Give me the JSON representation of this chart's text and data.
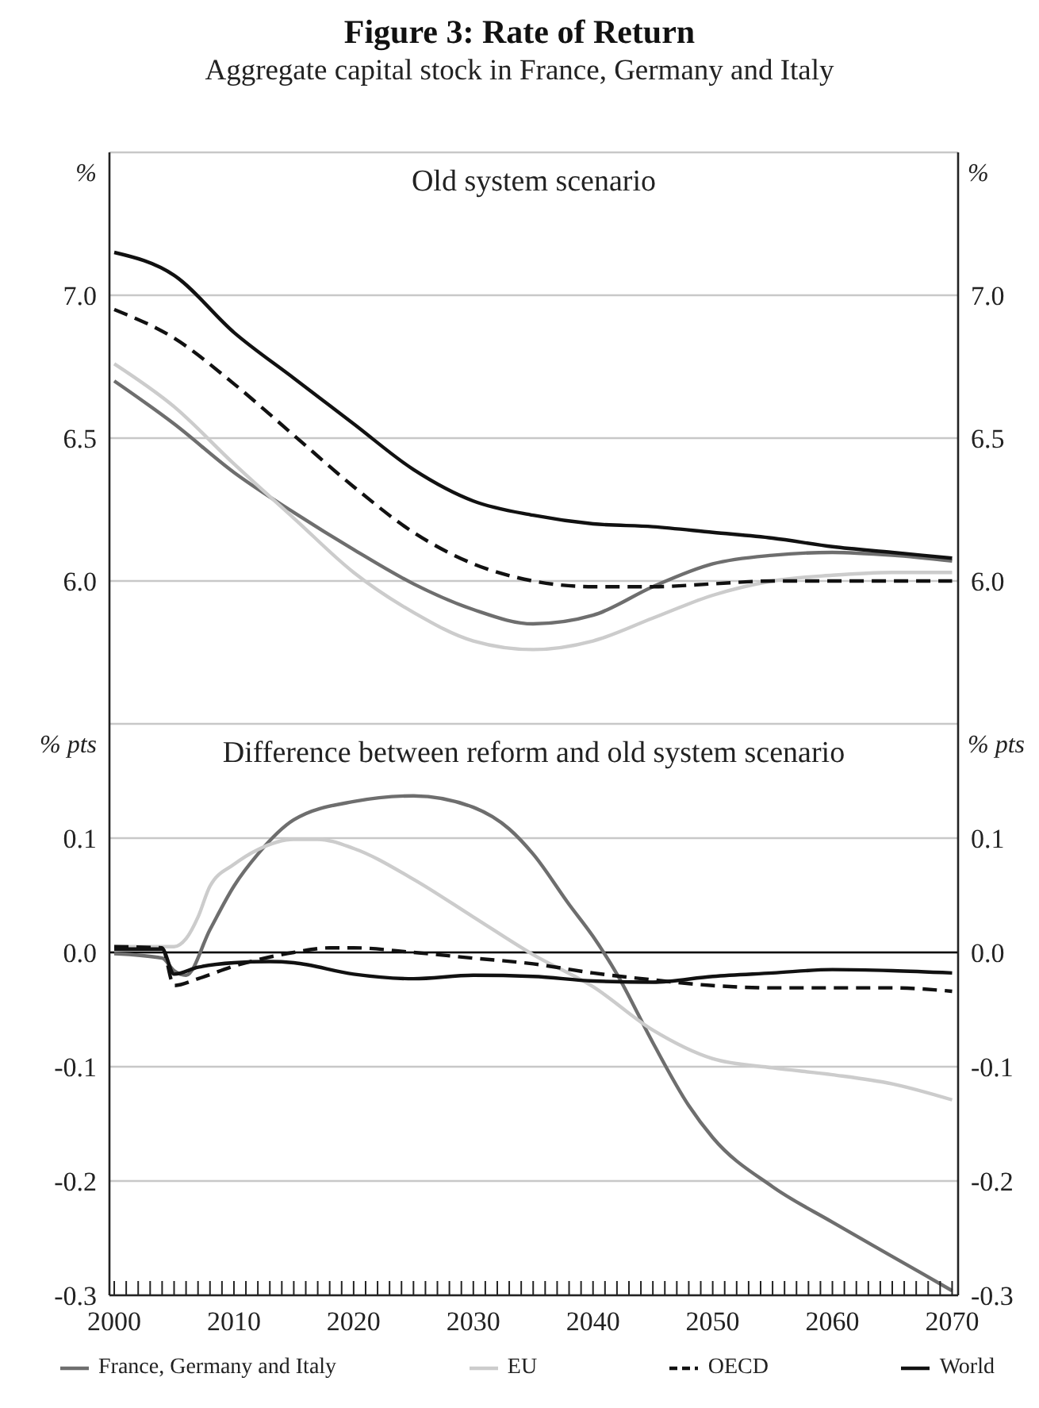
{
  "chart_data": [
    {
      "type": "line",
      "title": "Figure 3: Rate of Return",
      "subtitle": "Aggregate capital stock in France, Germany and Italy",
      "ylabel": "%",
      "y2label": "%",
      "annotations": [
        "Old system scenario"
      ],
      "xlim": [
        1999.6,
        2070.5
      ],
      "ylim": [
        5.5,
        7.5
      ],
      "yticks": [
        {
          "value": 6,
          "label": "6.0"
        },
        6.5,
        {
          "value": 7,
          "label": "7.0"
        }
      ],
      "y2lim": [
        5.5,
        7.5
      ],
      "y2ticks": [
        {
          "value": 6,
          "label": "6.0"
        },
        6.5,
        {
          "value": 7,
          "label": "7.0"
        }
      ],
      "tick_labels": "y",
      "grid": "y",
      "legend": false,
      "marker": "none",
      "series": [
        {
          "color": "#6e6e6e",
          "line_style": "solid",
          "x": [
            2000,
            2005,
            2010,
            2015,
            2020,
            2025,
            2030,
            2035,
            2040,
            2045,
            2050,
            2055,
            2060,
            2065,
            2070
          ],
          "values": [
            6.7,
            6.55,
            6.38,
            6.24,
            6.11,
            5.99,
            5.9,
            5.85,
            5.88,
            5.98,
            6.06,
            6.09,
            6.1,
            6.09,
            6.07
          ]
        },
        {
          "color": "#cccccc",
          "line_style": "solid",
          "x": [
            2000,
            2005,
            2010,
            2015,
            2020,
            2025,
            2030,
            2035,
            2040,
            2045,
            2050,
            2055,
            2060,
            2065,
            2070
          ],
          "values": [
            6.76,
            6.61,
            6.41,
            6.22,
            6.03,
            5.89,
            5.79,
            5.76,
            5.79,
            5.87,
            5.95,
            6.0,
            6.02,
            6.03,
            6.03
          ]
        },
        {
          "color": "#111111",
          "line_style": "dashed",
          "x": [
            2000,
            2005,
            2010,
            2015,
            2020,
            2025,
            2030,
            2035,
            2040,
            2045,
            2050,
            2055,
            2060,
            2065,
            2070
          ],
          "values": [
            6.95,
            6.85,
            6.69,
            6.51,
            6.33,
            6.17,
            6.06,
            6.0,
            5.98,
            5.98,
            5.99,
            6.0,
            6.0,
            6.0,
            6.0
          ]
        },
        {
          "color": "#111111",
          "line_style": "solid",
          "x": [
            2000,
            2005,
            2010,
            2015,
            2020,
            2025,
            2030,
            2035,
            2040,
            2045,
            2050,
            2055,
            2060,
            2065,
            2070
          ],
          "values": [
            7.15,
            7.07,
            6.87,
            6.71,
            6.55,
            6.39,
            6.28,
            6.23,
            6.2,
            6.19,
            6.17,
            6.15,
            6.12,
            6.1,
            6.08
          ]
        }
      ]
    },
    {
      "type": "line",
      "ylabel": "% pts",
      "y2label": "% pts",
      "annotations": [
        "Difference between reform and old system scenario"
      ],
      "xlim": [
        1999.6,
        2070.5
      ],
      "xticks": [
        2000,
        {
          "value": 2001,
          "label": null
        },
        {
          "value": 2002,
          "label": null
        },
        {
          "value": 2003,
          "label": null
        },
        {
          "value": 2004,
          "label": null
        },
        {
          "value": 2005,
          "label": null
        },
        {
          "value": 2006,
          "label": null
        },
        {
          "value": 2007,
          "label": null
        },
        {
          "value": 2008,
          "label": null
        },
        {
          "value": 2009,
          "label": null
        },
        2010,
        {
          "value": 2011,
          "label": null
        },
        {
          "value": 2012,
          "label": null
        },
        {
          "value": 2013,
          "label": null
        },
        {
          "value": 2014,
          "label": null
        },
        {
          "value": 2015,
          "label": null
        },
        {
          "value": 2016,
          "label": null
        },
        {
          "value": 2017,
          "label": null
        },
        {
          "value": 2018,
          "label": null
        },
        {
          "value": 2019,
          "label": null
        },
        2020,
        {
          "value": 2021,
          "label": null
        },
        {
          "value": 2022,
          "label": null
        },
        {
          "value": 2023,
          "label": null
        },
        {
          "value": 2024,
          "label": null
        },
        {
          "value": 2025,
          "label": null
        },
        {
          "value": 2026,
          "label": null
        },
        {
          "value": 2027,
          "label": null
        },
        {
          "value": 2028,
          "label": null
        },
        {
          "value": 2029,
          "label": null
        },
        2030,
        {
          "value": 2031,
          "label": null
        },
        {
          "value": 2032,
          "label": null
        },
        {
          "value": 2033,
          "label": null
        },
        {
          "value": 2034,
          "label": null
        },
        {
          "value": 2035,
          "label": null
        },
        {
          "value": 2036,
          "label": null
        },
        {
          "value": 2037,
          "label": null
        },
        {
          "value": 2038,
          "label": null
        },
        {
          "value": 2039,
          "label": null
        },
        2040,
        {
          "value": 2041,
          "label": null
        },
        {
          "value": 2042,
          "label": null
        },
        {
          "value": 2043,
          "label": null
        },
        {
          "value": 2044,
          "label": null
        },
        {
          "value": 2045,
          "label": null
        },
        {
          "value": 2046,
          "label": null
        },
        {
          "value": 2047,
          "label": null
        },
        {
          "value": 2048,
          "label": null
        },
        {
          "value": 2049,
          "label": null
        },
        2050,
        {
          "value": 2051,
          "label": null
        },
        {
          "value": 2052,
          "label": null
        },
        {
          "value": 2053,
          "label": null
        },
        {
          "value": 2054,
          "label": null
        },
        {
          "value": 2055,
          "label": null
        },
        {
          "value": 2056,
          "label": null
        },
        {
          "value": 2057,
          "label": null
        },
        {
          "value": 2058,
          "label": null
        },
        {
          "value": 2059,
          "label": null
        },
        2060,
        {
          "value": 2061,
          "label": null
        },
        {
          "value": 2062,
          "label": null
        },
        {
          "value": 2063,
          "label": null
        },
        {
          "value": 2064,
          "label": null
        },
        {
          "value": 2065,
          "label": null
        },
        {
          "value": 2066,
          "label": null
        },
        {
          "value": 2067,
          "label": null
        },
        {
          "value": 2068,
          "label": null
        },
        {
          "value": 2069,
          "label": null
        },
        2070
      ],
      "ylim": [
        -0.3,
        0.2
      ],
      "yticks": [
        -0.3,
        -0.2,
        -0.1,
        {
          "value": 0,
          "label": "0.0"
        },
        0.1
      ],
      "y2lim": [
        -0.3,
        0.2
      ],
      "y2ticks": [
        -0.3,
        -0.2,
        -0.1,
        {
          "value": 0,
          "label": "0.0"
        },
        0.1
      ],
      "grid": "y",
      "legend": "bottom",
      "marker": "none",
      "ref_lines": [
        {
          "axis": "y",
          "value": 0,
          "color": "#000000"
        }
      ],
      "series": [
        {
          "name": "France, Germany and Italy",
          "color": "#6e6e6e",
          "line_style": "solid",
          "x": [
            2000,
            2004,
            2005,
            2006,
            2008,
            2010,
            2012,
            2015,
            2020,
            2025,
            2030,
            2033,
            2035,
            2038,
            2040,
            2042,
            2045,
            2048,
            2050,
            2055,
            2060,
            2065,
            2070
          ],
          "values": [
            -0.001,
            -0.005,
            -0.016,
            -0.02,
            0.02,
            0.058,
            0.086,
            0.116,
            0.132,
            0.137,
            0.127,
            0.108,
            0.086,
            0.042,
            0.014,
            -0.019,
            -0.079,
            -0.134,
            -0.162,
            -0.205,
            -0.236,
            -0.266,
            -0.296
          ]
        },
        {
          "name": "EU",
          "color": "#cccccc",
          "line_style": "solid",
          "x": [
            2000,
            2005,
            2006,
            2007,
            2008,
            2010,
            2012,
            2015,
            2017,
            2020,
            2025,
            2030,
            2035,
            2040,
            2045,
            2050,
            2055,
            2060,
            2065,
            2070
          ],
          "values": [
            0.005,
            0.005,
            0.012,
            0.031,
            0.058,
            0.077,
            0.09,
            0.099,
            0.099,
            0.091,
            0.064,
            0.031,
            -0.002,
            -0.03,
            -0.068,
            -0.093,
            -0.101,
            -0.107,
            -0.115,
            -0.129
          ]
        },
        {
          "name": "OECD",
          "color": "#111111",
          "line_style": "dashed",
          "x": [
            2000,
            2004,
            2005,
            2007,
            2010,
            2013,
            2015,
            2018,
            2020,
            2025,
            2030,
            2035,
            2040,
            2045,
            2050,
            2055,
            2060,
            2065,
            2070
          ],
          "values": [
            0.005,
            0.004,
            -0.029,
            -0.023,
            -0.012,
            -0.004,
            0.0,
            0.004,
            0.004,
            0.0,
            -0.005,
            -0.01,
            -0.018,
            -0.024,
            -0.029,
            -0.031,
            -0.031,
            -0.031,
            -0.034
          ]
        },
        {
          "name": "World",
          "color": "#111111",
          "line_style": "solid",
          "x": [
            2000,
            2004,
            2005,
            2007,
            2010,
            2013,
            2015,
            2020,
            2025,
            2030,
            2035,
            2040,
            2045,
            2050,
            2055,
            2060,
            2065,
            2070
          ],
          "values": [
            0.003,
            0.003,
            -0.019,
            -0.013,
            -0.009,
            -0.008,
            -0.009,
            -0.019,
            -0.023,
            -0.02,
            -0.021,
            -0.025,
            -0.026,
            -0.021,
            -0.018,
            -0.015,
            -0.016,
            -0.018
          ]
        }
      ]
    }
  ]
}
